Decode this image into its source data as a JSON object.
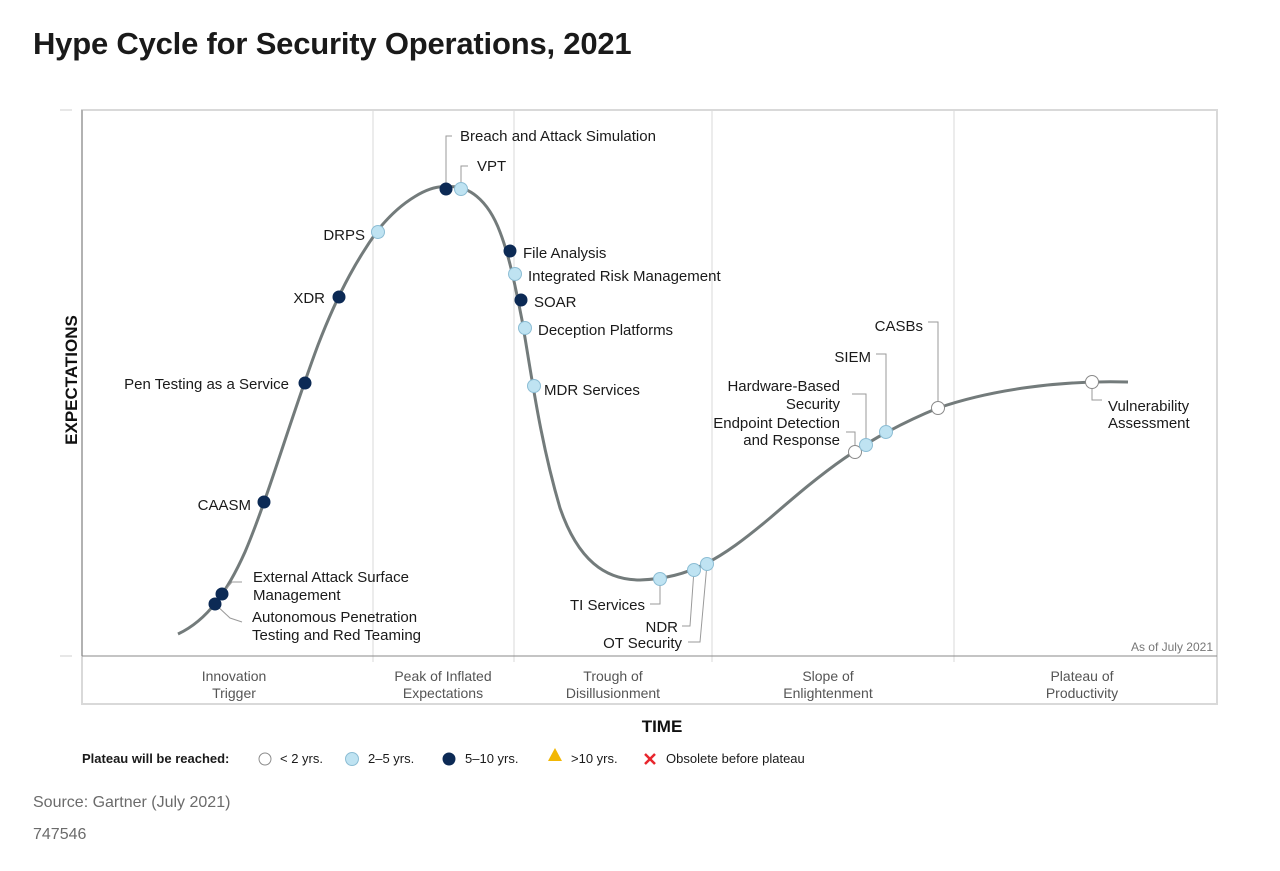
{
  "title": "Hype Cycle for Security Operations, 2021",
  "source": "Source: Gartner (July 2021)",
  "doc_id": "747546",
  "axes": {
    "y_label": "EXPECTATIONS",
    "x_label": "TIME"
  },
  "as_of": "As of July 2021",
  "phases": [
    {
      "line1": "Innovation",
      "line2": "Trigger"
    },
    {
      "line1": "Peak of Inflated",
      "line2": "Expectations"
    },
    {
      "line1": "Trough of",
      "line2": "Disillusionment"
    },
    {
      "line1": "Slope of",
      "line2": "Enlightenment"
    },
    {
      "line1": "Plateau of",
      "line2": "Productivity"
    }
  ],
  "legend": {
    "title": "Plateau will be reached:",
    "items": [
      {
        "label": "< 2 yrs.",
        "marker": "open-circle"
      },
      {
        "label": "2–5 yrs.",
        "marker": "light-blue-circle"
      },
      {
        "label": "5–10 yrs.",
        "marker": "dark-blue-circle"
      },
      {
        "label": ">10 yrs.",
        "marker": "yellow-triangle"
      },
      {
        "label": "Obsolete before plateau",
        "marker": "red-x"
      }
    ]
  },
  "colors": {
    "curve": "#737b7b",
    "open": "#ffffff",
    "light_blue": "#bfe3f2",
    "dark_blue": "#0c2a55",
    "triangle": "#f2b705",
    "obsolete": "#e8262d"
  },
  "technologies": [
    {
      "name": "External Attack Surface Management",
      "lines": [
        "External Attack Surface",
        "Management"
      ],
      "plateau": "5–10 yrs."
    },
    {
      "name": "Autonomous Penetration Testing and Red Teaming",
      "lines": [
        "Autonomous Penetration",
        "Testing and Red Teaming"
      ],
      "plateau": "5–10 yrs."
    },
    {
      "name": "CAASM",
      "lines": [
        "CAASM"
      ],
      "plateau": "5–10 yrs."
    },
    {
      "name": "Pen Testing as a Service",
      "lines": [
        "Pen Testing as a Service"
      ],
      "plateau": "5–10 yrs."
    },
    {
      "name": "XDR",
      "lines": [
        "XDR"
      ],
      "plateau": "5–10 yrs."
    },
    {
      "name": "DRPS",
      "lines": [
        "DRPS"
      ],
      "plateau": "2–5 yrs."
    },
    {
      "name": "Breach and Attack Simulation",
      "lines": [
        "Breach and Attack Simulation"
      ],
      "plateau": "5–10 yrs."
    },
    {
      "name": "VPT",
      "lines": [
        "VPT"
      ],
      "plateau": "2–5 yrs."
    },
    {
      "name": "File Analysis",
      "lines": [
        "File Analysis"
      ],
      "plateau": "5–10 yrs."
    },
    {
      "name": "Integrated Risk Management",
      "lines": [
        "Integrated Risk Management"
      ],
      "plateau": "2–5 yrs."
    },
    {
      "name": "SOAR",
      "lines": [
        "SOAR"
      ],
      "plateau": "5–10 yrs."
    },
    {
      "name": "Deception Platforms",
      "lines": [
        "Deception Platforms"
      ],
      "plateau": "2–5 yrs."
    },
    {
      "name": "MDR Services",
      "lines": [
        "MDR Services"
      ],
      "plateau": "2–5 yrs."
    },
    {
      "name": "TI Services",
      "lines": [
        "TI Services"
      ],
      "plateau": "2–5 yrs."
    },
    {
      "name": "NDR",
      "lines": [
        "NDR"
      ],
      "plateau": "2–5 yrs."
    },
    {
      "name": "OT Security",
      "lines": [
        "OT Security"
      ],
      "plateau": "2–5 yrs."
    },
    {
      "name": "Endpoint Detection and Response",
      "lines": [
        "Endpoint Detection",
        "and Response"
      ],
      "plateau": "< 2 yrs."
    },
    {
      "name": "Hardware-Based Security",
      "lines": [
        "Hardware-Based",
        "Security"
      ],
      "plateau": "2–5 yrs."
    },
    {
      "name": "SIEM",
      "lines": [
        "SIEM"
      ],
      "plateau": "2–5 yrs."
    },
    {
      "name": "CASBs",
      "lines": [
        "CASBs"
      ],
      "plateau": "< 2 yrs."
    },
    {
      "name": "Vulnerability Assessment",
      "lines": [
        "Vulnerability",
        "Assessment"
      ],
      "plateau": "< 2 yrs."
    }
  ]
}
